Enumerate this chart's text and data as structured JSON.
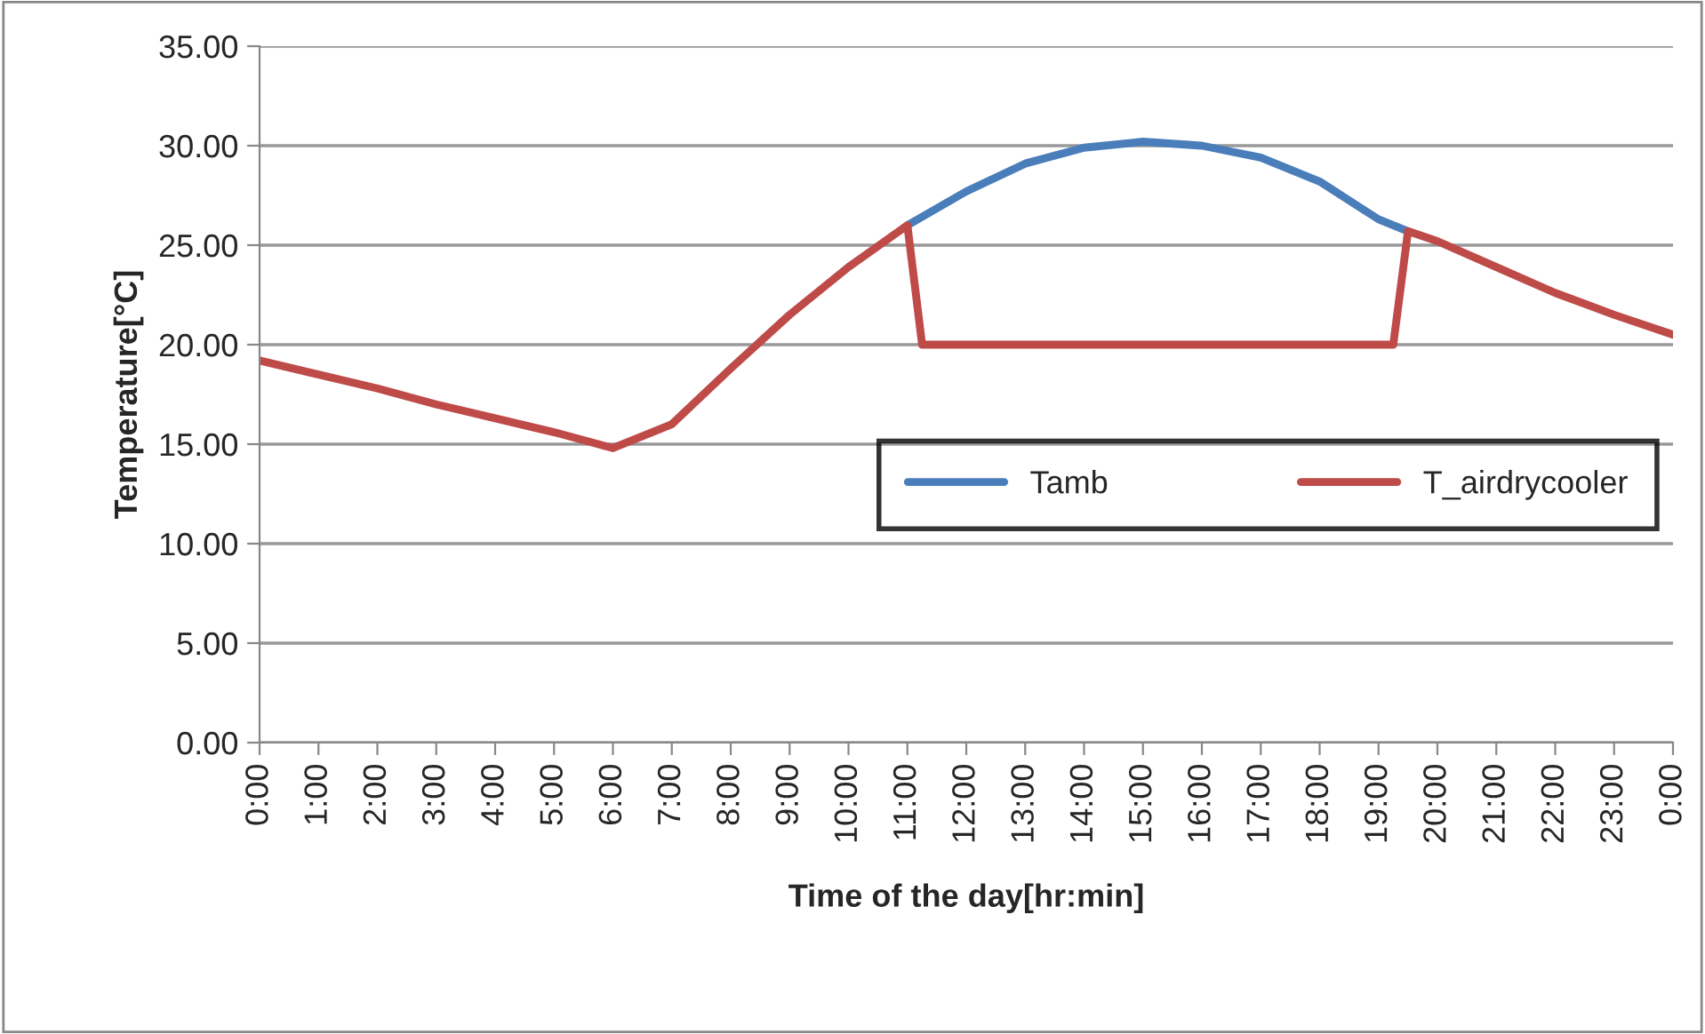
{
  "chart_data": {
    "type": "line",
    "xlabel": "Time of the day[hr:min]",
    "ylabel": "Temperature[°C]",
    "xlim": [
      0,
      24
    ],
    "xticks": [
      {
        "value": 0,
        "label": "0:00"
      },
      {
        "value": 1,
        "label": "1:00"
      },
      {
        "value": 2,
        "label": "2:00"
      },
      {
        "value": 3,
        "label": "3:00"
      },
      {
        "value": 4,
        "label": "4:00"
      },
      {
        "value": 5,
        "label": "5:00"
      },
      {
        "value": 6,
        "label": "6:00"
      },
      {
        "value": 7,
        "label": "7:00"
      },
      {
        "value": 8,
        "label": "8:00"
      },
      {
        "value": 9,
        "label": "9:00"
      },
      {
        "value": 10,
        "label": "10:00"
      },
      {
        "value": 11,
        "label": "11:00"
      },
      {
        "value": 12,
        "label": "12:00"
      },
      {
        "value": 13,
        "label": "13:00"
      },
      {
        "value": 14,
        "label": "14:00"
      },
      {
        "value": 15,
        "label": "15:00"
      },
      {
        "value": 16,
        "label": "16:00"
      },
      {
        "value": 17,
        "label": "17:00"
      },
      {
        "value": 18,
        "label": "18:00"
      },
      {
        "value": 19,
        "label": "19:00"
      },
      {
        "value": 20,
        "label": "20:00"
      },
      {
        "value": 21,
        "label": "21:00"
      },
      {
        "value": 22,
        "label": "22:00"
      },
      {
        "value": 23,
        "label": "23:00"
      },
      {
        "value": 24,
        "label": "0:00"
      }
    ],
    "ylim": [
      0,
      35
    ],
    "yticks": [
      {
        "value": 0,
        "label": "0.00"
      },
      {
        "value": 5,
        "label": "5.00"
      },
      {
        "value": 10,
        "label": "10.00"
      },
      {
        "value": 15,
        "label": "15.00"
      },
      {
        "value": 20,
        "label": "20.00"
      },
      {
        "value": 25,
        "label": "25.00"
      },
      {
        "value": 30,
        "label": "30.00"
      },
      {
        "value": 35,
        "label": "35.00"
      }
    ],
    "grid": "y",
    "legend": "right",
    "marker": "none",
    "line_style": "solid",
    "series": [
      {
        "name": "Tamb",
        "color": "#4a7ebb",
        "x": [
          11,
          12,
          13,
          14,
          15,
          16,
          17,
          18,
          19,
          19.5
        ],
        "values": [
          26.0,
          27.7,
          29.1,
          29.9,
          30.2,
          30.0,
          29.4,
          28.2,
          26.3,
          25.7
        ]
      },
      {
        "name": "T_airdrycooler",
        "color": "#be4b48",
        "x": [
          0,
          1,
          2,
          3,
          4,
          5,
          6,
          7,
          8,
          9,
          10,
          11,
          11.25,
          19.25,
          19.5,
          20,
          21,
          22,
          23,
          24
        ],
        "values": [
          19.2,
          18.5,
          17.8,
          17.0,
          16.3,
          15.6,
          14.8,
          16.0,
          18.8,
          21.5,
          23.9,
          26.0,
          20.0,
          20.0,
          25.7,
          25.2,
          23.9,
          22.6,
          21.5,
          20.5
        ]
      }
    ]
  }
}
